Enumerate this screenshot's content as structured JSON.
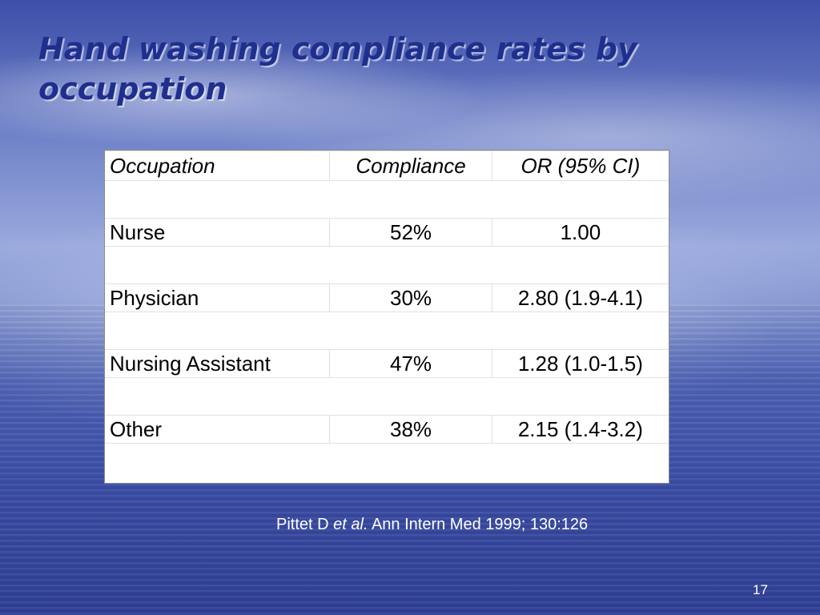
{
  "slide": {
    "title": "Hand washing compliance rates by occupation",
    "table": {
      "headers": [
        "Occupation",
        "Compliance",
        "OR (95% CI)"
      ],
      "rows": [
        {
          "occupation": "Nurse",
          "compliance": "52%",
          "or": "1.00"
        },
        {
          "occupation": "Physician",
          "compliance": "30%",
          "or": "2.80 (1.9-4.1)"
        },
        {
          "occupation": "Nursing Assistant",
          "compliance": "47%",
          "or": "1.28 (1.0-1.5)"
        },
        {
          "occupation": "Other",
          "compliance": "38%",
          "or": "2.15 (1.4-3.2)"
        }
      ]
    },
    "citation": {
      "author": "Pittet D ",
      "etal": "et al.",
      "source": " Ann Intern Med 1999; 130:126"
    },
    "page_number": "17"
  }
}
